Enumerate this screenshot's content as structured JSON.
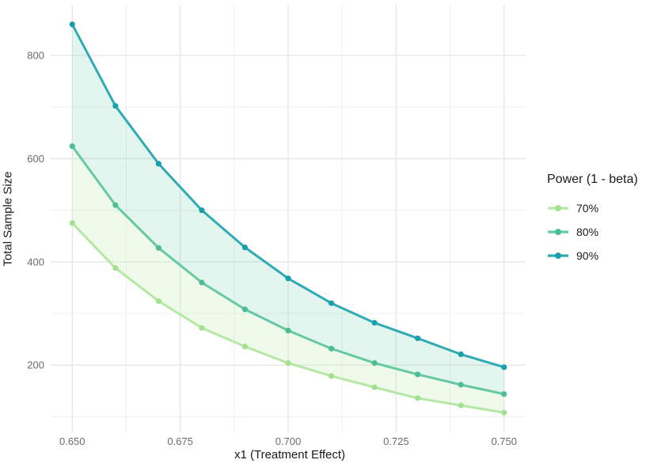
{
  "axes": {
    "x_title": "x1 (Treatment Effect)",
    "y_title": "Total Sample Size"
  },
  "legend": {
    "title": "Power (1 - beta)",
    "entries": [
      {
        "label": "70%"
      },
      {
        "label": "80%"
      },
      {
        "label": "90%"
      }
    ]
  },
  "chart_data": {
    "type": "line",
    "title": "",
    "xlabel": "x1 (Treatment Effect)",
    "ylabel": "Total Sample Size",
    "x": [
      0.65,
      0.66,
      0.67,
      0.68,
      0.69,
      0.7,
      0.71,
      0.72,
      0.73,
      0.74,
      0.75
    ],
    "series": [
      {
        "name": "70%",
        "color": "#b5e8a4",
        "point_color": "#a3e090",
        "values": [
          475,
          388,
          324,
          272,
          236,
          204,
          179,
          157,
          136,
          122,
          108
        ]
      },
      {
        "name": "80%",
        "color": "#66c9a4",
        "point_color": "#4cbd94",
        "values": [
          624,
          510,
          427,
          360,
          308,
          267,
          232,
          204,
          182,
          162,
          144
        ]
      },
      {
        "name": "90%",
        "color": "#2fabb5",
        "point_color": "#1aa0ab",
        "values": [
          860,
          702,
          590,
          500,
          428,
          368,
          320,
          282,
          252,
          221,
          196
        ]
      }
    ],
    "bands": [
      {
        "lower": 0,
        "upper": 1,
        "fill": "rgba(181,232,164,0.22)"
      },
      {
        "lower": 1,
        "upper": 2,
        "fill": "rgba(102,201,164,0.18)"
      }
    ],
    "x_ticks": [
      0.65,
      0.675,
      0.7,
      0.725,
      0.75
    ],
    "x_tick_labels": [
      "0.650",
      "0.675",
      "0.700",
      "0.725",
      "0.750"
    ],
    "y_ticks": [
      200,
      400,
      600,
      800
    ],
    "y_tick_labels": [
      "200",
      "400",
      "600",
      "800"
    ],
    "minor_x": [
      0.6625,
      0.6875,
      0.7125,
      0.7375
    ],
    "minor_y": [
      100,
      300,
      500,
      700
    ],
    "xlim": [
      0.645,
      0.755
    ],
    "ylim": [
      70,
      898
    ],
    "grid": {
      "major_color": "#e4e4e4",
      "minor_color": "#efefef",
      "background": "#ffffff"
    },
    "legend_position": "right",
    "tick_label_color": "#6b6b6b"
  }
}
